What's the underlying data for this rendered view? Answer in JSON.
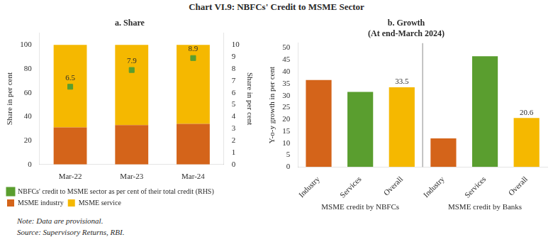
{
  "title": "Chart VI.9: NBFCs' Credit to MSME Sector",
  "annotations": [
    "Note: Data are provisional.",
    "Source: Supervisory Returns, RBI."
  ],
  "chart_data": [
    {
      "type": "bar",
      "title": "a. Share",
      "categories": [
        "Mar-22",
        "Mar-23",
        "Mar-24"
      ],
      "stacked": true,
      "ylabel": "Share in per cent",
      "y2label": "Share in per cent",
      "ylim": [
        0,
        110
      ],
      "yticks": [
        0,
        20,
        40,
        60,
        80,
        100
      ],
      "y2lim": [
        0,
        11
      ],
      "y2ticks": [
        0,
        1,
        2,
        3,
        4,
        5,
        6,
        7,
        8,
        9,
        10
      ],
      "grid": false,
      "legend": "lower left",
      "series": [
        {
          "name": "MSME industry",
          "color": "#d4641a",
          "values": [
            31,
            33,
            34
          ]
        },
        {
          "name": "MSME service",
          "color": "#f5b800",
          "values": [
            69,
            67,
            66
          ]
        },
        {
          "name": "NBFCs' credit to MSME sector as per cent of their total credit (RHS)",
          "color": "#5a9e2f",
          "values": [
            6.5,
            7.9,
            8.9
          ],
          "axis": "y2",
          "type": "scatter",
          "marker": "square",
          "data_labels": true
        }
      ]
    },
    {
      "type": "bar",
      "title": "b. Growth",
      "subtitle": "(At end-March 2024)",
      "categories": [
        "Industry",
        "Services",
        "Overall",
        "Industry",
        "Services",
        "Overall"
      ],
      "values": [
        36.5,
        31.5,
        33.5,
        12.0,
        46.5,
        20.6
      ],
      "value_labels": [
        null,
        null,
        "33.5",
        null,
        null,
        "20.6"
      ],
      "colors": [
        "#d4641a",
        "#5a9e2f",
        "#f5b800",
        "#d4641a",
        "#5a9e2f",
        "#f5b800"
      ],
      "ylabel": "Y-o-y growth in per cent",
      "ylim": [
        0,
        52
      ],
      "yticks": [
        0,
        5,
        10,
        15,
        20,
        25,
        30,
        35,
        40,
        45,
        50
      ],
      "grid": false,
      "groups": [
        {
          "name": "MSME credit by NBFCs",
          "count": 3
        },
        {
          "name": "MSME credit by Banks",
          "count": 3
        }
      ]
    }
  ]
}
